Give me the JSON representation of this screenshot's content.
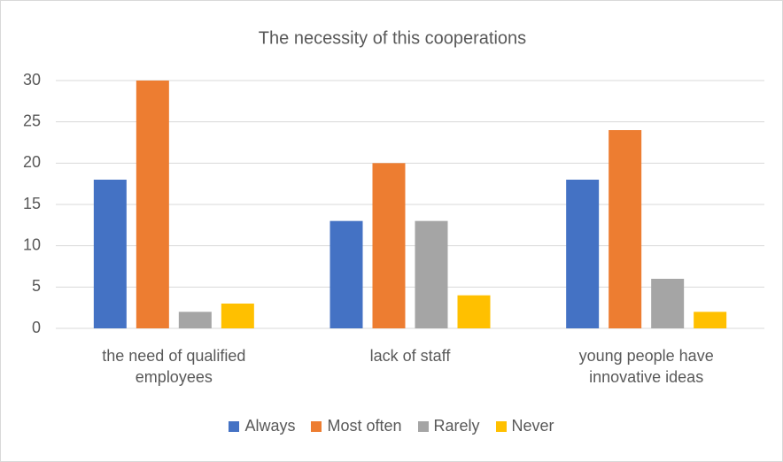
{
  "chart_data": {
    "type": "bar",
    "title": "The necessity of this cooperations",
    "categories": [
      "the need of qualified employees",
      "lack of staff",
      "young people have innovative ideas"
    ],
    "series": [
      {
        "name": "Always",
        "color": "#4472c4",
        "values": [
          18,
          13,
          18
        ]
      },
      {
        "name": "Most often",
        "color": "#ed7d31",
        "values": [
          30,
          20,
          24
        ]
      },
      {
        "name": "Rarely",
        "color": "#a5a5a5",
        "values": [
          2,
          13,
          6
        ]
      },
      {
        "name": "Never",
        "color": "#ffc000",
        "values": [
          3,
          4,
          2
        ]
      }
    ],
    "ylim": [
      0,
      30
    ],
    "yticks": [
      0,
      5,
      10,
      15,
      20,
      25,
      30
    ],
    "grid": true,
    "legend": "bottom"
  }
}
